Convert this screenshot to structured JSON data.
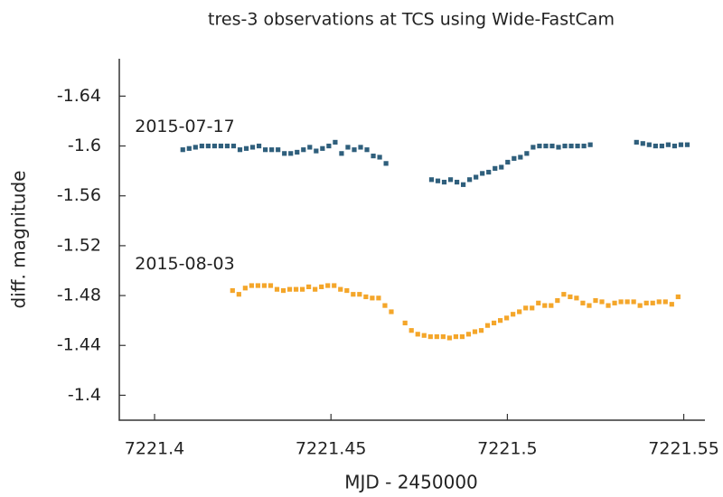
{
  "chart_data": {
    "type": "scatter",
    "title": "tres-3 observations at TCS using Wide-FastCam",
    "xlabel": "MJD - 2450000",
    "ylabel": "diff. magnitude",
    "xlim": [
      7221.39,
      7221.556
    ],
    "xticks": [
      7221.4,
      7221.45,
      7221.5,
      7221.55
    ],
    "ylim": [
      -1.38,
      -1.67
    ],
    "yticks": [
      -1.64,
      -1.6,
      -1.56,
      -1.52,
      -1.48,
      -1.44,
      -1.4
    ],
    "grid": false,
    "series": [
      {
        "name": "2015-07-17",
        "color": "#2f5f7c",
        "x": [
          7221.408,
          7221.4098,
          7221.4116,
          7221.4134,
          7221.4152,
          7221.417,
          7221.4188,
          7221.4206,
          7221.4224,
          7221.4242,
          7221.426,
          7221.4278,
          7221.4296,
          7221.4314,
          7221.4332,
          7221.435,
          7221.4368,
          7221.4386,
          7221.4404,
          7221.4422,
          7221.444,
          7221.4458,
          7221.4476,
          7221.4494,
          7221.4512,
          7221.453,
          7221.4548,
          7221.4566,
          7221.4584,
          7221.4602,
          7221.462,
          7221.4638,
          7221.4656,
          7221.4785,
          7221.4803,
          7221.4821,
          7221.4839,
          7221.4857,
          7221.4875,
          7221.4893,
          7221.4911,
          7221.4929,
          7221.4947,
          7221.4965,
          7221.4983,
          7221.5001,
          7221.5019,
          7221.5037,
          7221.5055,
          7221.5073,
          7221.5091,
          7221.5109,
          7221.5127,
          7221.5145,
          7221.5163,
          7221.5181,
          7221.5199,
          7221.5217,
          7221.5235,
          7221.5366,
          7221.5384,
          7221.5402,
          7221.542,
          7221.5438,
          7221.5456,
          7221.5474,
          7221.5492,
          7221.551
        ],
        "values": [
          -1.597,
          -1.598,
          -1.599,
          -1.6,
          -1.6,
          -1.6,
          -1.6,
          -1.6,
          -1.6,
          -1.597,
          -1.598,
          -1.599,
          -1.6,
          -1.597,
          -1.597,
          -1.597,
          -1.594,
          -1.594,
          -1.595,
          -1.597,
          -1.599,
          -1.596,
          -1.598,
          -1.6,
          -1.603,
          -1.594,
          -1.599,
          -1.597,
          -1.599,
          -1.597,
          -1.592,
          -1.591,
          -1.586,
          -1.573,
          -1.572,
          -1.571,
          -1.573,
          -1.571,
          -1.569,
          -1.573,
          -1.575,
          -1.578,
          -1.579,
          -1.582,
          -1.583,
          -1.587,
          -1.59,
          -1.591,
          -1.594,
          -1.599,
          -1.6,
          -1.6,
          -1.6,
          -1.599,
          -1.6,
          -1.6,
          -1.6,
          -1.6,
          -1.601,
          -1.603,
          -1.602,
          -1.601,
          -1.6,
          -1.6,
          -1.601,
          -1.6,
          -1.601,
          -1.601
        ]
      },
      {
        "name": "2015-08-03",
        "color": "#f4a62a",
        "x": [
          7221.4221,
          7221.4239,
          7221.4257,
          7221.4275,
          7221.4293,
          7221.4311,
          7221.4329,
          7221.4347,
          7221.4365,
          7221.4383,
          7221.4401,
          7221.4419,
          7221.4437,
          7221.4455,
          7221.4473,
          7221.4491,
          7221.4509,
          7221.4527,
          7221.4545,
          7221.4563,
          7221.4581,
          7221.4599,
          7221.4617,
          7221.4635,
          7221.4653,
          7221.4671,
          7221.471,
          7221.4728,
          7221.4746,
          7221.4764,
          7221.4782,
          7221.48,
          7221.4818,
          7221.4836,
          7221.4854,
          7221.4872,
          7221.489,
          7221.4908,
          7221.4926,
          7221.4944,
          7221.4962,
          7221.498,
          7221.4998,
          7221.5016,
          7221.5034,
          7221.5052,
          7221.507,
          7221.5088,
          7221.5106,
          7221.5124,
          7221.5142,
          7221.516,
          7221.5178,
          7221.5196,
          7221.5214,
          7221.5232,
          7221.525,
          7221.5268,
          7221.5286,
          7221.5304,
          7221.5322,
          7221.534,
          7221.5358,
          7221.5376,
          7221.5394,
          7221.5412,
          7221.543,
          7221.5448,
          7221.5466,
          7221.5484
        ],
        "values": [
          -1.484,
          -1.481,
          -1.486,
          -1.488,
          -1.488,
          -1.488,
          -1.488,
          -1.485,
          -1.484,
          -1.485,
          -1.485,
          -1.485,
          -1.487,
          -1.485,
          -1.487,
          -1.488,
          -1.488,
          -1.485,
          -1.484,
          -1.481,
          -1.481,
          -1.479,
          -1.478,
          -1.478,
          -1.472,
          -1.467,
          -1.458,
          -1.452,
          -1.449,
          -1.448,
          -1.447,
          -1.447,
          -1.447,
          -1.446,
          -1.447,
          -1.447,
          -1.449,
          -1.451,
          -1.452,
          -1.456,
          -1.458,
          -1.46,
          -1.462,
          -1.465,
          -1.467,
          -1.47,
          -1.47,
          -1.474,
          -1.472,
          -1.472,
          -1.476,
          -1.481,
          -1.479,
          -1.478,
          -1.474,
          -1.472,
          -1.476,
          -1.475,
          -1.472,
          -1.474,
          -1.475,
          -1.475,
          -1.475,
          -1.472,
          -1.474,
          -1.474,
          -1.475,
          -1.475,
          -1.473,
          -1.479
        ]
      }
    ]
  }
}
